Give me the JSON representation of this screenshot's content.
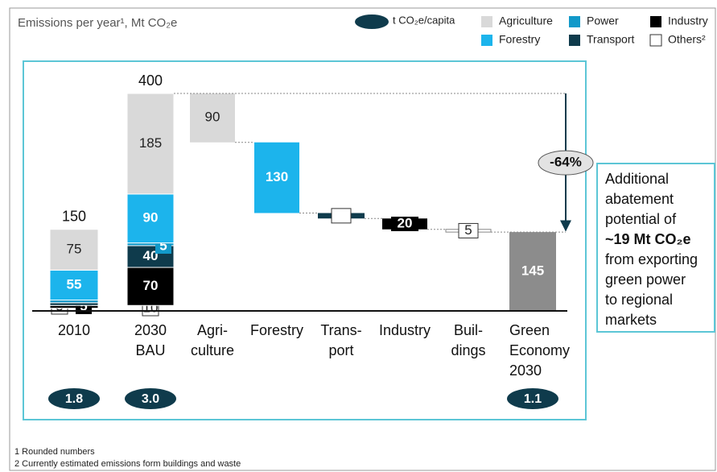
{
  "chart_data": {
    "type": "waterfall",
    "title": "Emissions per year¹, Mt CO₂e",
    "categories": [
      "2010",
      "2030\nBAU",
      "Agri-\nculture",
      "Forestry",
      "Trans-\nport",
      "Industry",
      "Buil-\ndings",
      "Green\nEconomy\n2030"
    ],
    "series": [
      {
        "name": "Others²",
        "color": "#ffffff",
        "values": [
          5,
          10,
          null,
          null,
          null,
          null,
          5,
          null
        ]
      },
      {
        "name": "Industry",
        "color": "#000000",
        "values": [
          5,
          70,
          null,
          null,
          null,
          20,
          null,
          null
        ]
      },
      {
        "name": "Transport",
        "color": "#0f3b4c",
        "values": [
          5,
          40,
          null,
          null,
          10,
          null,
          null,
          null
        ]
      },
      {
        "name": "Power",
        "color": "#1299c9",
        "values": [
          5,
          5,
          null,
          null,
          null,
          null,
          null,
          null
        ]
      },
      {
        "name": "Forestry",
        "color": "#1cb4ec",
        "values": [
          55,
          90,
          null,
          130,
          null,
          null,
          null,
          null
        ]
      },
      {
        "name": "Agriculture",
        "color": "#d9d9d9",
        "values": [
          75,
          185,
          90,
          null,
          null,
          null,
          null,
          null
        ]
      }
    ],
    "totals": [
      150,
      400,
      null,
      null,
      null,
      null,
      null,
      145
    ],
    "total_color": "#8c8c8c",
    "per_capita": {
      "name": "t CO₂e/capita",
      "color": "#0f3b4c",
      "values": [
        1.8,
        3,
        null,
        null,
        null,
        null,
        null,
        1.1
      ],
      "value_labels": [
        "1.8",
        "3.0",
        null,
        null,
        null,
        null,
        null,
        "1.1"
      ]
    },
    "change_label": "-64%",
    "callout": [
      "Additional",
      "abatement",
      "potential of",
      "~19 Mt CO₂e",
      "from exporting",
      "green power",
      "to regional",
      "markets"
    ],
    "footnotes": [
      "1 Rounded numbers",
      "2 Currently estimated emissions form buildings and waste"
    ]
  }
}
